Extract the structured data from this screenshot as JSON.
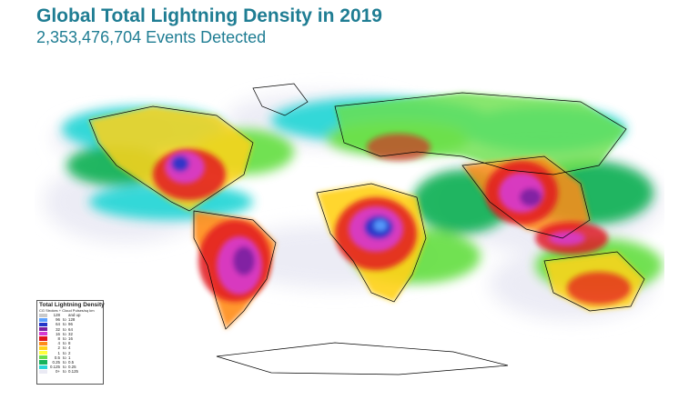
{
  "header": {
    "title": "Global Total Lightning Density in 2019",
    "subtitle": "2,353,476,704 Events Detected"
  },
  "map": {
    "content": "world map of lightning event density",
    "ocean_color": "#ffffff",
    "coastline_color": "#000000"
  },
  "legend": {
    "title": "Total Lightning Density",
    "subtitle": "CG Strokes + Cloud Pulses/sq km",
    "entries": [
      {
        "low": "128",
        "to": "",
        "high": "and up",
        "color": "#c9c9c9"
      },
      {
        "low": "96",
        "to": "to",
        "high": "128",
        "color": "#5aa0ff"
      },
      {
        "low": "64",
        "to": "to",
        "high": "96",
        "color": "#2436c8"
      },
      {
        "low": "32",
        "to": "to",
        "high": "64",
        "color": "#7a1fa0"
      },
      {
        "low": "16",
        "to": "to",
        "high": "32",
        "color": "#d63bd1"
      },
      {
        "low": "8",
        "to": "to",
        "high": "16",
        "color": "#e2141e"
      },
      {
        "low": "4",
        "to": "to",
        "high": "8",
        "color": "#ff8c1a"
      },
      {
        "low": "2",
        "to": "to",
        "high": "4",
        "color": "#ffd21a"
      },
      {
        "low": "1",
        "to": "to",
        "high": "2",
        "color": "#ffff3c"
      },
      {
        "low": "0.5",
        "to": "to",
        "high": "1",
        "color": "#6be04a"
      },
      {
        "low": "0.25",
        "to": "to",
        "high": "0.5",
        "color": "#17b35a"
      },
      {
        "low": "0.125",
        "to": "to",
        "high": "0.25",
        "color": "#2ad7d7"
      },
      {
        "low": "0+",
        "to": "to",
        "high": "0.125",
        "color": "#eaeaf4"
      }
    ]
  }
}
